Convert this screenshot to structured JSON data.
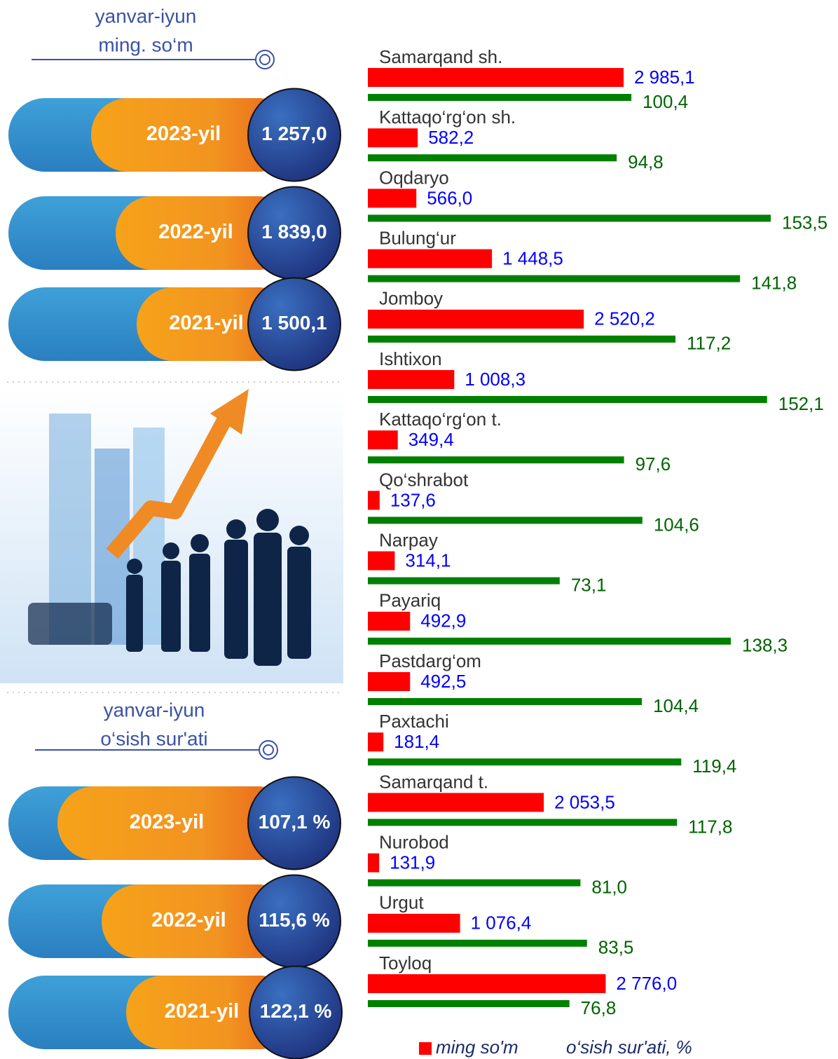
{
  "chart_data": {
    "type": "hbar",
    "categories": [
      "Samarqand sh.",
      "Kattaqo‘rg‘on sh.",
      "Oqdaryo",
      "Bulung‘ur",
      "Jomboy",
      "Ishtixon",
      "Kattaqo‘rg‘on t.",
      "Qo‘shrabot",
      "Narpay",
      "Payariq",
      "Pastdarg‘om",
      "Paxtachi",
      "Samarqand t.",
      "Nurobod",
      "Urgut",
      "Toyloq"
    ],
    "series": [
      {
        "name": "ming so'm",
        "color": "#ff0000",
        "values": [
          2985.1,
          582.2,
          566.0,
          1448.5,
          2520.2,
          1008.3,
          349.4,
          137.6,
          314.1,
          492.9,
          492.5,
          181.4,
          2053.5,
          131.9,
          1076.4,
          2776.0
        ],
        "value_labels": [
          "2 985,1",
          "582,2",
          "566,0",
          "1 448,5",
          "2 520,2",
          "1 008,3",
          "349,4",
          "137,6",
          "314,1",
          "492,9",
          "492,5",
          "181,4",
          "2 053,5",
          "131,9",
          "1 076,4",
          "2 776,0"
        ]
      },
      {
        "name": "o‘sish sur'ati, %",
        "color": "#008000",
        "values": [
          100.4,
          94.8,
          153.5,
          141.8,
          117.2,
          152.1,
          97.6,
          104.6,
          73.1,
          138.3,
          104.4,
          119.4,
          117.8,
          81.0,
          83.5,
          76.8
        ],
        "value_labels": [
          "100,4",
          "94,8",
          "153,5",
          "141,8",
          "117,2",
          "152,1",
          "97,6",
          "104,6",
          "73,1",
          "138,3",
          "104,4",
          "119,4",
          "117,8",
          "81,0",
          "83,5",
          "76,8"
        ]
      }
    ]
  },
  "panel_top": {
    "title": "yanvar-iyun",
    "subtitle": "ming. so‘m",
    "items": [
      {
        "year": "2023-yil",
        "value": "1 257,0"
      },
      {
        "year": "2022-yil",
        "value": "1 839,0"
      },
      {
        "year": "2021-yil",
        "value": "1 500,1"
      }
    ]
  },
  "panel_bottom": {
    "title": "yanvar-iyun",
    "subtitle": "o‘sish sur'ati",
    "items": [
      {
        "year": "2023-yil",
        "value": "107,1 %"
      },
      {
        "year": "2022-yil",
        "value": "115,6 %"
      },
      {
        "year": "2021-yil",
        "value": "122,1 %"
      }
    ]
  }
}
